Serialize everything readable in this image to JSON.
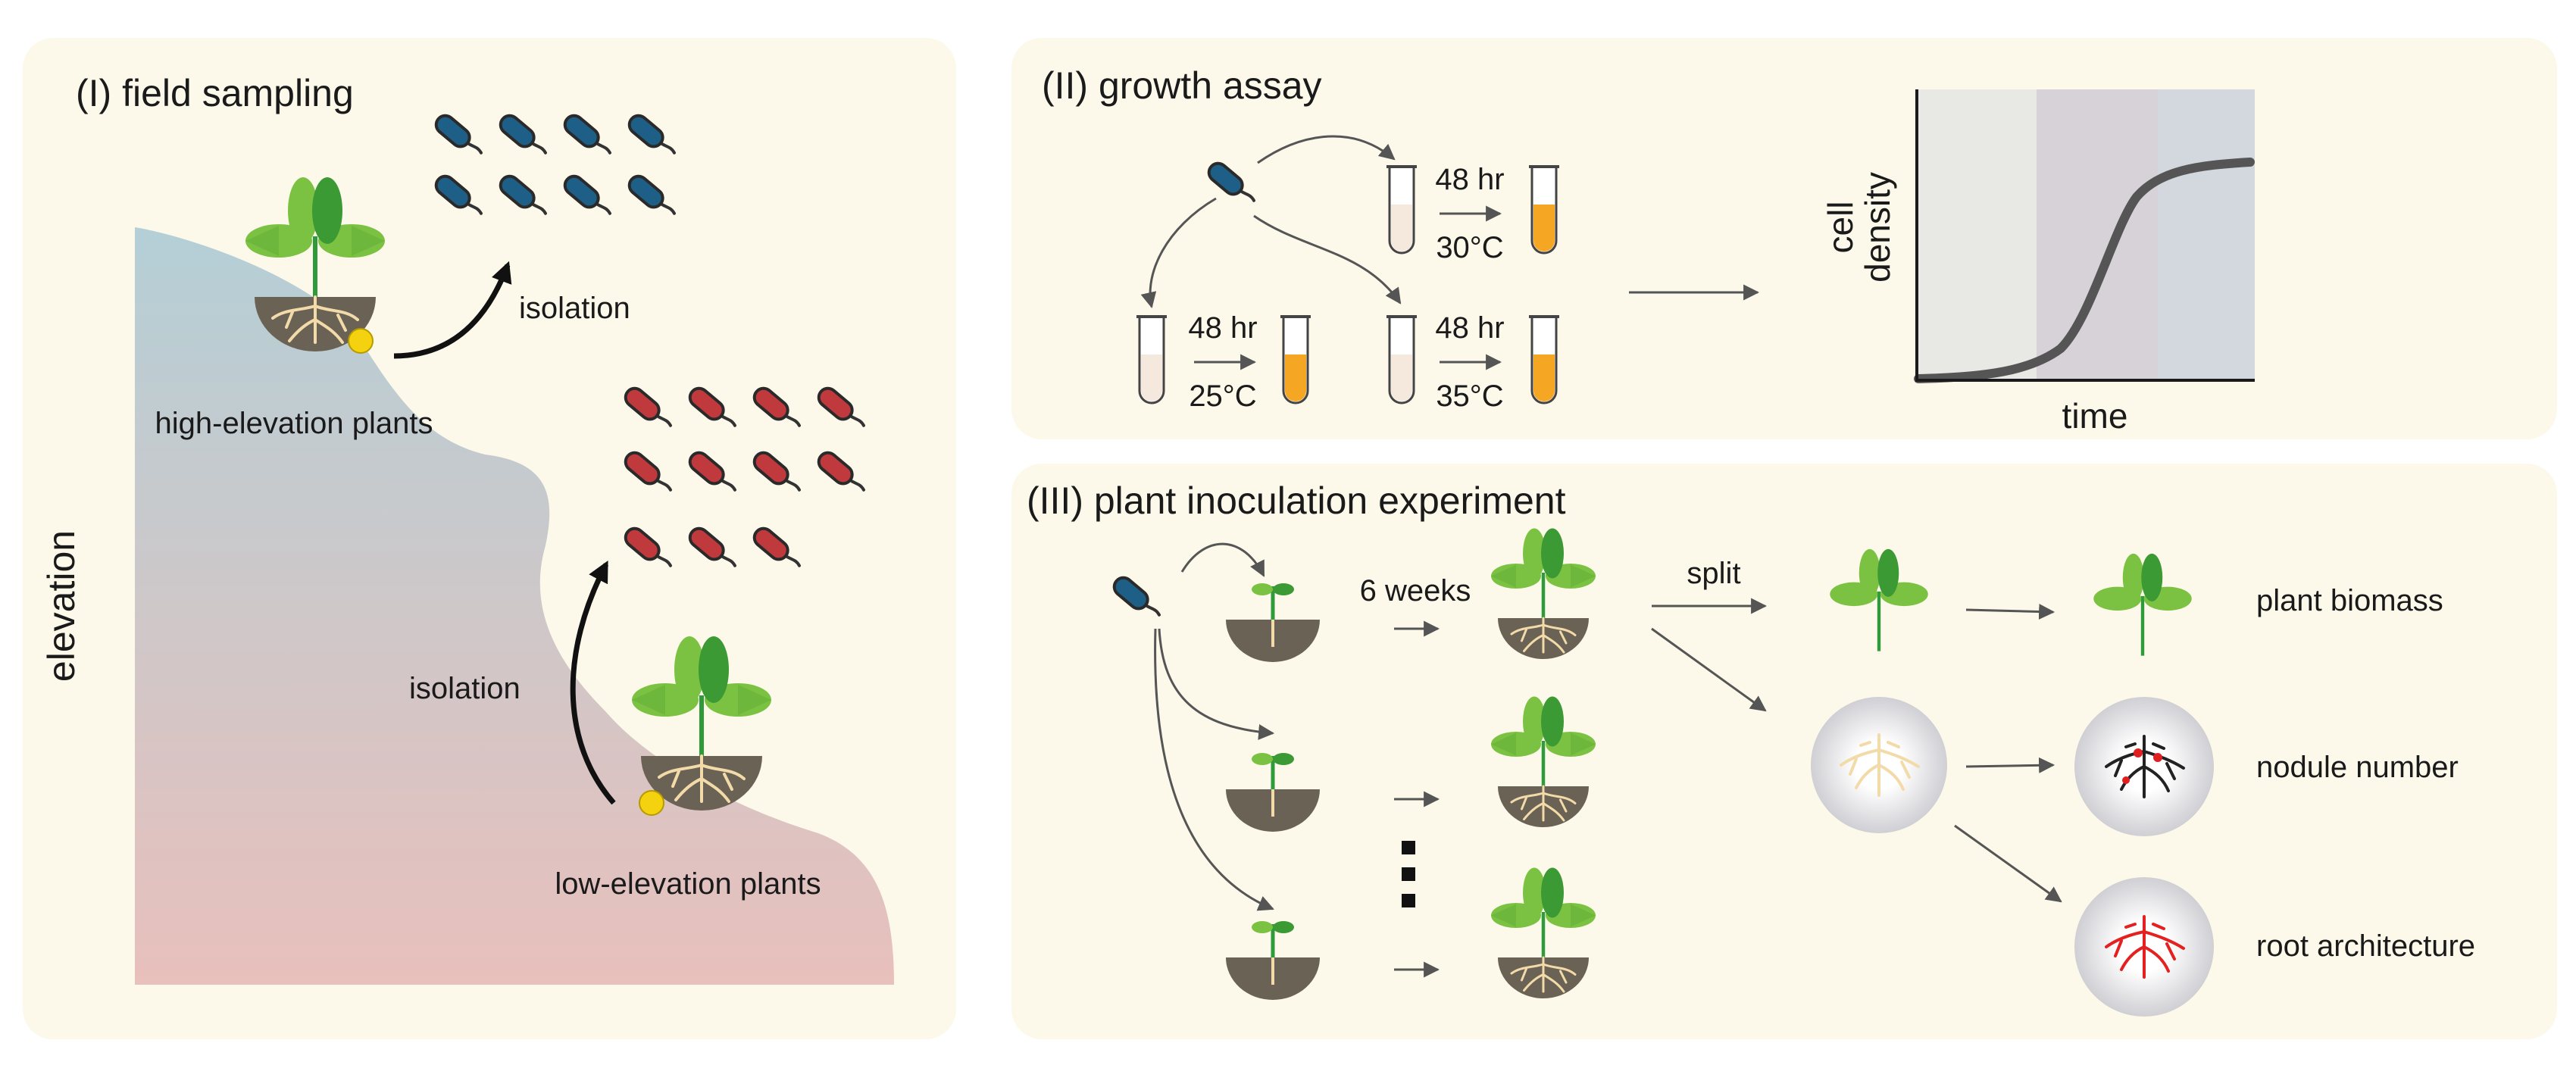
{
  "panel1": {
    "title": "(I) field sampling",
    "elevation_label": "elevation",
    "isolation_top": "isolation",
    "isolation_bottom": "isolation",
    "high_label": "high-elevation plants",
    "low_label": "low-elevation plants"
  },
  "panel2": {
    "title": "(II) growth assay",
    "time_top": "48 hr",
    "temp_top": "30°C",
    "time_left": "48 hr",
    "temp_left": "25°C",
    "time_right": "48 hr",
    "temp_right": "35°C",
    "chart_ylabel_1": "cell",
    "chart_ylabel_2": "density",
    "chart_xlabel": "time"
  },
  "panel3": {
    "title": "(III) plant inoculation experiment",
    "weeks_label": "6 weeks",
    "split_label": "split",
    "out_biomass": "plant biomass",
    "out_nodule": "nodule number",
    "out_root": "root architecture"
  },
  "colors": {
    "panel_bg": "#fcf9ea",
    "bacteria_blue": "#1d5f86",
    "bacteria_red": "#c0393d",
    "leaf_light": "#7cc242",
    "leaf_dark": "#3c9a34",
    "soil": "#6b6256",
    "root": "#f2dba8",
    "culture": "#f5a623",
    "curve": "#555555"
  }
}
